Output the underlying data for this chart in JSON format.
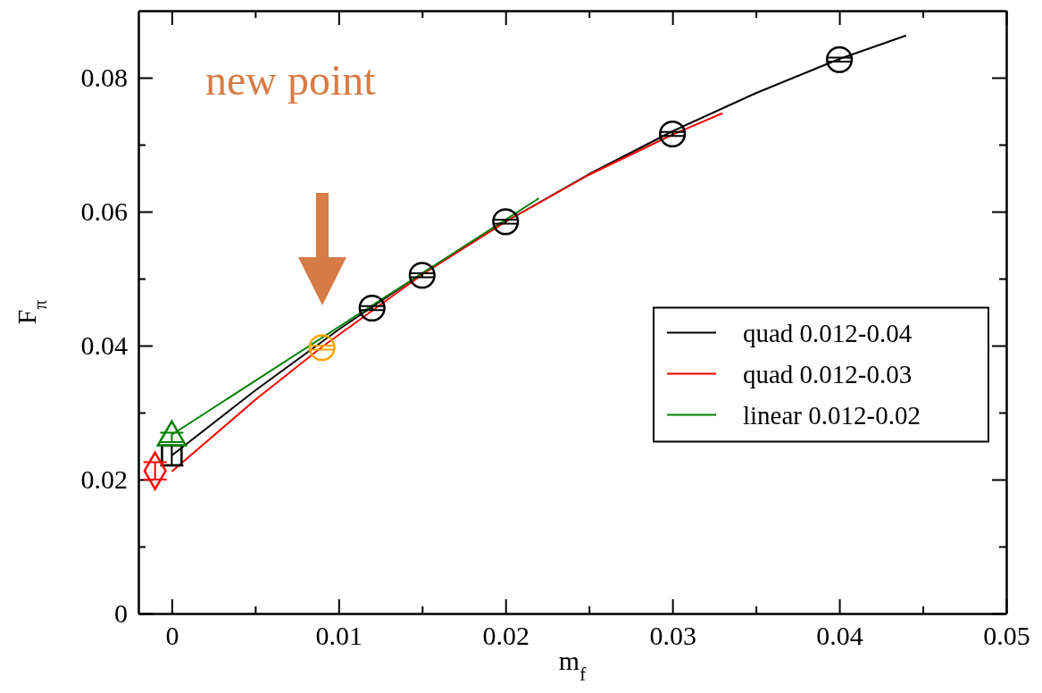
{
  "chart_data": {
    "type": "scatter",
    "xlabel": "m$_{f}$",
    "ylabel": "F$_{π}$",
    "xlim": [
      -0.002,
      0.05
    ],
    "ylim": [
      0,
      0.09
    ],
    "xticks": [
      0,
      {
        "value": 0.005,
        "label": null
      },
      0.01,
      {
        "value": 0.015,
        "label": null
      },
      0.02,
      {
        "value": 0.025,
        "label": null
      },
      0.03,
      {
        "value": 0.035,
        "label": null
      },
      0.04,
      {
        "value": 0.045,
        "label": null
      },
      0.05
    ],
    "yticks": [
      0,
      {
        "value": 0.01,
        "label": null
      },
      0.02,
      {
        "value": 0.03,
        "label": null
      },
      0.04,
      {
        "value": 0.05,
        "label": null
      },
      0.06,
      {
        "value": 0.07,
        "label": null
      },
      0.08
    ],
    "grid": false,
    "legend": "right",
    "annotations": [
      "new point"
    ],
    "series": [
      {
        "name": "quad 0.012-0.04",
        "type": "line",
        "color": "#000000",
        "line_style": "solid",
        "x": [
          0,
          0.005,
          0.01,
          0.015,
          0.02,
          0.025,
          0.03,
          0.035,
          0.04,
          0.044
        ],
        "values": [
          0.0236,
          0.0333,
          0.0424,
          0.0508,
          0.0585,
          0.0656,
          0.072,
          0.0777,
          0.0828,
          0.0863
        ]
      },
      {
        "name": "quad 0.012-0.03",
        "type": "line",
        "color": "#ff0000",
        "line_style": "solid",
        "x": [
          0,
          0.005,
          0.009,
          0.015,
          0.02,
          0.025,
          0.03,
          0.033
        ],
        "values": [
          0.0212,
          0.0319,
          0.0398,
          0.0506,
          0.0585,
          0.0655,
          0.0715,
          0.0747
        ]
      },
      {
        "name": "linear 0.012-0.02",
        "type": "line",
        "color": "#008000",
        "line_style": "solid",
        "x": [
          0,
          0.011,
          0.022
        ],
        "values": [
          0.0267,
          0.0444,
          0.062
        ]
      },
      {
        "type": "scatter",
        "color": "#000000",
        "marker": "circle",
        "x": [
          0.012,
          0.015,
          0.02,
          0.03,
          0.04
        ],
        "values": [
          0.0456,
          0.0505,
          0.0585,
          0.0716,
          0.0827
        ],
        "errors": [
          0.0003,
          0.0003,
          0.0003,
          0.0003,
          0.0003
        ]
      },
      {
        "type": "scatter",
        "color": "#ffa500",
        "marker": "circle",
        "x": [
          0.009
        ],
        "values": [
          0.0397
        ],
        "errors": [
          0.0003
        ]
      },
      {
        "type": "scatter",
        "color": "#000000",
        "marker": "square",
        "x": [
          0
        ],
        "values": [
          0.0236
        ],
        "errors": [
          0.0015
        ]
      },
      {
        "type": "scatter",
        "color": "#ff0000",
        "marker": "diamond",
        "x": [
          -0.001
        ],
        "values": [
          0.0213
        ],
        "errors": [
          0.0013
        ]
      },
      {
        "type": "scatter",
        "color": "#008000",
        "marker": "triangle",
        "x": [
          0
        ],
        "values": [
          0.0263
        ],
        "errors": [
          0.0007
        ]
      }
    ]
  }
}
